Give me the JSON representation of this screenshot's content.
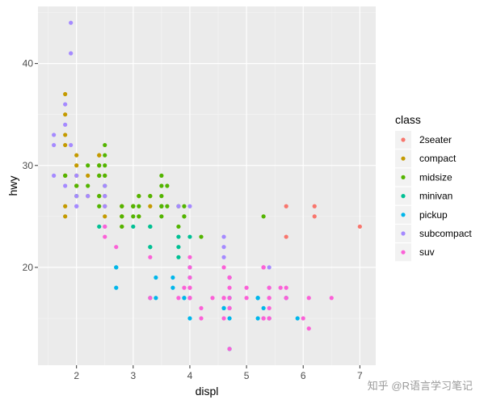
{
  "chart_data": {
    "type": "scatter",
    "xlabel": "displ",
    "ylabel": "hwy",
    "xlim": [
      1.32,
      7.28
    ],
    "ylim": [
      10.4,
      45.6
    ],
    "x_ticks": [
      2,
      3,
      4,
      5,
      6,
      7
    ],
    "y_ticks": [
      20,
      30,
      40
    ],
    "grid": true,
    "legend": {
      "title": "class",
      "position": "right",
      "entries": [
        {
          "name": "2seater",
          "color": "#F8766D"
        },
        {
          "name": "compact",
          "color": "#C49A00"
        },
        {
          "name": "midsize",
          "color": "#53B400"
        },
        {
          "name": "minivan",
          "color": "#00C094"
        },
        {
          "name": "pickup",
          "color": "#00B6EB"
        },
        {
          "name": "subcompact",
          "color": "#A58AFF"
        },
        {
          "name": "suv",
          "color": "#FB61D7"
        }
      ]
    },
    "series": [
      {
        "name": "2seater",
        "points": [
          [
            5.7,
            26
          ],
          [
            5.7,
            23
          ],
          [
            6.2,
            26
          ],
          [
            6.2,
            25
          ],
          [
            7.0,
            24
          ]
        ]
      },
      {
        "name": "compact",
        "points": [
          [
            1.8,
            29
          ],
          [
            1.8,
            29
          ],
          [
            2.0,
            31
          ],
          [
            2.0,
            30
          ],
          [
            2.8,
            26
          ],
          [
            2.8,
            26
          ],
          [
            3.1,
            27
          ],
          [
            1.8,
            26
          ],
          [
            1.8,
            25
          ],
          [
            2.0,
            28
          ],
          [
            2.0,
            29
          ],
          [
            2.8,
            25
          ],
          [
            3.1,
            25
          ],
          [
            2.2,
            27
          ],
          [
            2.2,
            29
          ],
          [
            2.4,
            31
          ],
          [
            2.4,
            31
          ],
          [
            3.0,
            26
          ],
          [
            3.3,
            26
          ],
          [
            1.8,
            35
          ],
          [
            1.8,
            37
          ],
          [
            1.8,
            33
          ],
          [
            1.8,
            32
          ],
          [
            2.4,
            27
          ],
          [
            2.5,
            26
          ],
          [
            2.5,
            27
          ],
          [
            2.5,
            25
          ],
          [
            2.5,
            29
          ],
          [
            2.8,
            24
          ],
          [
            2.8,
            25
          ],
          [
            3.0,
            26
          ],
          [
            3.3,
            27
          ],
          [
            2.0,
            28
          ],
          [
            2.4,
            30
          ],
          [
            2.4,
            29
          ]
        ]
      },
      {
        "name": "midsize",
        "points": [
          [
            2.4,
            26
          ],
          [
            3.1,
            27
          ],
          [
            3.1,
            26
          ],
          [
            3.5,
            29
          ],
          [
            3.6,
            26
          ],
          [
            3.8,
            26
          ],
          [
            3.8,
            24
          ],
          [
            4.2,
            23
          ],
          [
            2.4,
            27
          ],
          [
            2.5,
            31
          ],
          [
            2.5,
            32
          ],
          [
            3.3,
            27
          ],
          [
            3.5,
            26
          ],
          [
            3.5,
            25
          ],
          [
            2.2,
            28
          ],
          [
            2.2,
            30
          ],
          [
            2.4,
            29
          ],
          [
            3.0,
            26
          ],
          [
            3.5,
            26
          ],
          [
            2.5,
            29
          ],
          [
            2.5,
            28
          ],
          [
            3.5,
            26
          ],
          [
            3.5,
            27
          ],
          [
            3.9,
            26
          ],
          [
            3.9,
            25
          ],
          [
            5.3,
            25
          ],
          [
            1.8,
            29
          ],
          [
            2.0,
            28
          ],
          [
            2.8,
            24
          ],
          [
            2.8,
            25
          ],
          [
            3.0,
            26
          ],
          [
            2.4,
            30
          ],
          [
            3.0,
            25
          ],
          [
            3.3,
            24
          ],
          [
            2.5,
            30
          ],
          [
            3.5,
            28
          ],
          [
            3.9,
            25
          ],
          [
            2.8,
            26
          ],
          [
            3.6,
            28
          ],
          [
            2.0,
            27
          ],
          [
            3.1,
            25
          ]
        ]
      },
      {
        "name": "minivan",
        "points": [
          [
            2.4,
            24
          ],
          [
            3.0,
            24
          ],
          [
            3.3,
            22
          ],
          [
            3.3,
            22
          ],
          [
            3.3,
            24
          ],
          [
            3.3,
            24
          ],
          [
            3.3,
            17
          ],
          [
            3.8,
            22
          ],
          [
            3.8,
            21
          ],
          [
            3.8,
            23
          ],
          [
            4.0,
            23
          ],
          [
            2.7,
            20
          ]
        ]
      },
      {
        "name": "pickup",
        "points": [
          [
            3.7,
            19
          ],
          [
            3.7,
            18
          ],
          [
            3.9,
            17
          ],
          [
            3.9,
            17
          ],
          [
            4.7,
            19
          ],
          [
            4.7,
            19
          ],
          [
            4.7,
            12
          ],
          [
            5.2,
            17
          ],
          [
            5.2,
            17
          ],
          [
            5.7,
            17
          ],
          [
            5.9,
            15
          ],
          [
            4.7,
            17
          ],
          [
            4.7,
            12
          ],
          [
            4.7,
            17
          ],
          [
            4.7,
            16
          ],
          [
            5.7,
            17
          ],
          [
            2.7,
            18
          ],
          [
            2.7,
            20
          ],
          [
            3.4,
            17
          ],
          [
            3.4,
            19
          ],
          [
            4.0,
            20
          ],
          [
            4.0,
            17
          ],
          [
            4.0,
            19
          ],
          [
            4.6,
            16
          ],
          [
            5.4,
            15
          ],
          [
            5.2,
            17
          ],
          [
            4.0,
            15
          ],
          [
            4.6,
            16
          ],
          [
            4.7,
            15
          ],
          [
            5.2,
            15
          ],
          [
            5.3,
            16
          ]
        ]
      },
      {
        "name": "subcompact",
        "points": [
          [
            1.9,
            44
          ],
          [
            1.9,
            41
          ],
          [
            1.6,
            32
          ],
          [
            1.6,
            33
          ],
          [
            1.6,
            29
          ],
          [
            2.0,
            27
          ],
          [
            2.0,
            26
          ],
          [
            2.5,
            28
          ],
          [
            2.5,
            26
          ],
          [
            2.0,
            26
          ],
          [
            2.2,
            27
          ],
          [
            3.8,
            26
          ],
          [
            4.0,
            26
          ],
          [
            4.6,
            22
          ],
          [
            4.6,
            23
          ],
          [
            5.4,
            20
          ],
          [
            1.8,
            28
          ],
          [
            1.8,
            36
          ],
          [
            1.8,
            34
          ],
          [
            1.9,
            32
          ],
          [
            2.0,
            29
          ],
          [
            2.5,
            27
          ],
          [
            2.5,
            24
          ],
          [
            4.6,
            21
          ],
          [
            5.4,
            18
          ]
        ]
      },
      {
        "name": "suv",
        "points": [
          [
            5.3,
            20
          ],
          [
            5.3,
            15
          ],
          [
            5.3,
            20
          ],
          [
            5.7,
            17
          ],
          [
            6.5,
            17
          ],
          [
            2.5,
            23
          ],
          [
            2.5,
            24
          ],
          [
            4.7,
            17
          ],
          [
            4.7,
            12
          ],
          [
            4.7,
            19
          ],
          [
            4.7,
            19
          ],
          [
            5.7,
            18
          ],
          [
            6.1,
            14
          ],
          [
            4.0,
            17
          ],
          [
            4.2,
            15
          ],
          [
            4.4,
            17
          ],
          [
            4.6,
            17
          ],
          [
            5.4,
            16
          ],
          [
            5.4,
            15
          ],
          [
            4.6,
            20
          ],
          [
            5.4,
            17
          ],
          [
            4.0,
            19
          ],
          [
            4.0,
            17
          ],
          [
            4.6,
            17
          ],
          [
            5.0,
            18
          ],
          [
            3.3,
            17
          ],
          [
            3.8,
            17
          ],
          [
            4.0,
            18
          ],
          [
            4.7,
            18
          ],
          [
            5.7,
            17
          ],
          [
            6.1,
            17
          ],
          [
            4.7,
            16
          ],
          [
            5.3,
            20
          ],
          [
            5.3,
            15
          ],
          [
            6.0,
            15
          ],
          [
            3.9,
            18
          ],
          [
            4.7,
            16
          ],
          [
            5.4,
            15
          ],
          [
            5.4,
            18
          ],
          [
            4.2,
            16
          ],
          [
            5.0,
            17
          ],
          [
            4.0,
            17
          ],
          [
            2.7,
            22
          ],
          [
            3.3,
            21
          ],
          [
            4.0,
            20
          ],
          [
            5.6,
            18
          ],
          [
            4.0,
            21
          ],
          [
            4.7,
            19
          ],
          [
            4.6,
            15
          ],
          [
            5.4,
            17
          ],
          [
            4.0,
            18
          ]
        ]
      }
    ]
  },
  "watermark": "知乎 @R语言学习笔记"
}
